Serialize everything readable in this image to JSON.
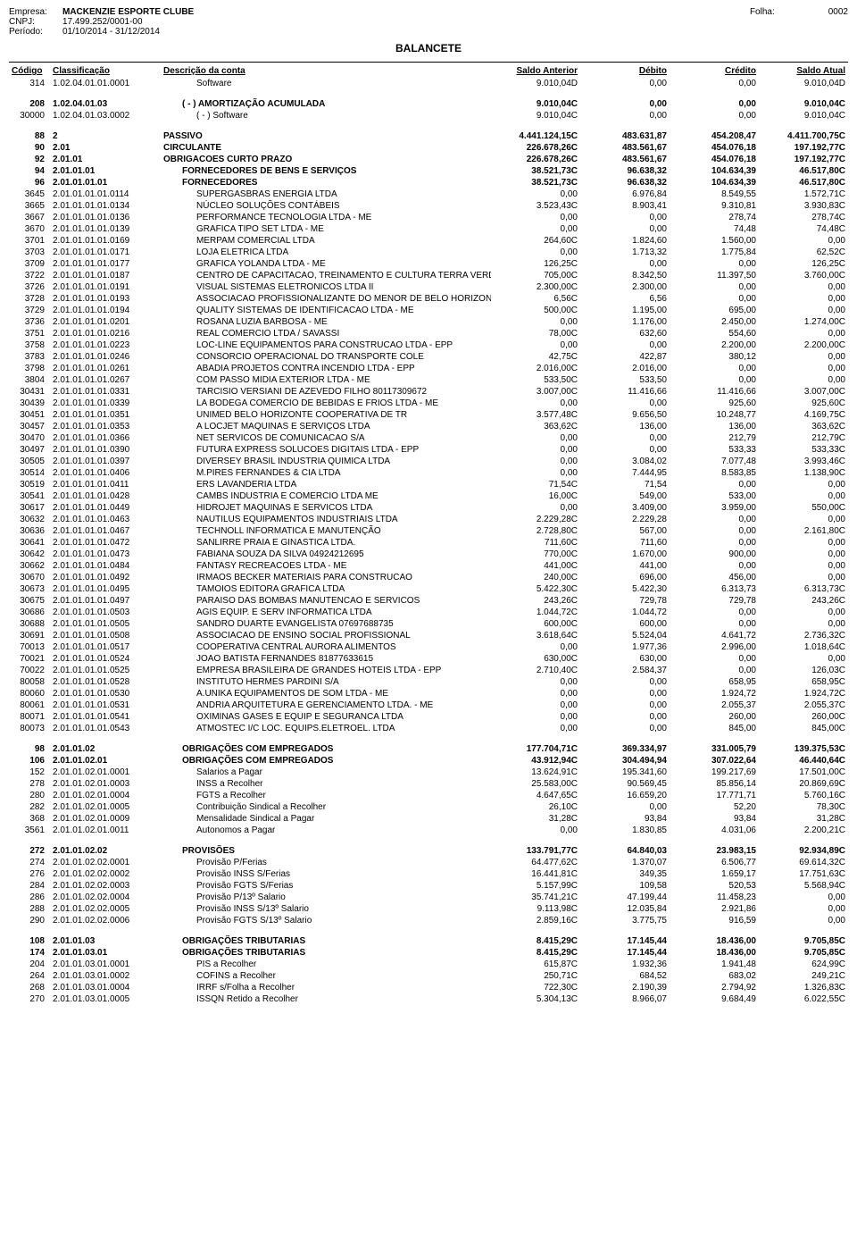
{
  "header": {
    "empresa_label": "Empresa:",
    "empresa": "MACKENZIE ESPORTE CLUBE",
    "cnpj_label": "CNPJ:",
    "cnpj": "17.499.252/0001-00",
    "periodo_label": "Período:",
    "periodo": "01/10/2014 - 31/12/2014",
    "folha_label": "Folha:",
    "folha": "0002",
    "title": "BALANCETE"
  },
  "columns": {
    "codigo": "Código",
    "classificacao": "Classificação",
    "descricao": "Descrição da conta",
    "saldo_anterior": "Saldo Anterior",
    "debito": "Débito",
    "credito": "Crédito",
    "saldo_atual": "Saldo Atual"
  },
  "rows": [
    {
      "codigo": "314",
      "class": "1.02.04.01.01.0001",
      "desc": "Software",
      "sa": "9.010,04D",
      "deb": "0,00",
      "cred": "0,00",
      "satual": "9.010,04D",
      "indent": 2
    },
    {
      "spacer": true
    },
    {
      "codigo": "208",
      "class": "1.02.04.01.03",
      "desc": "( - ) AMORTIZAÇÃO ACUMULADA",
      "sa": "9.010,04C",
      "deb": "0,00",
      "cred": "0,00",
      "satual": "9.010,04C",
      "bold": true,
      "indent": 1
    },
    {
      "codigo": "30000",
      "class": "1.02.04.01.03.0002",
      "desc": "( - ) Software",
      "sa": "9.010,04C",
      "deb": "0,00",
      "cred": "0,00",
      "satual": "9.010,04C",
      "indent": 2
    },
    {
      "spacer": true
    },
    {
      "codigo": "88",
      "class": "2",
      "desc": "PASSIVO",
      "sa": "4.441.124,15C",
      "deb": "483.631,87",
      "cred": "454.208,47",
      "satual": "4.411.700,75C",
      "bold": true
    },
    {
      "codigo": "90",
      "class": "2.01",
      "desc": "CIRCULANTE",
      "sa": "226.678,26C",
      "deb": "483.561,67",
      "cred": "454.076,18",
      "satual": "197.192,77C",
      "bold": true
    },
    {
      "codigo": "92",
      "class": "2.01.01",
      "desc": "OBRIGACOES CURTO PRAZO",
      "sa": "226.678,26C",
      "deb": "483.561,67",
      "cred": "454.076,18",
      "satual": "197.192,77C",
      "bold": true
    },
    {
      "codigo": "94",
      "class": "2.01.01.01",
      "desc": "FORNECEDORES DE BENS E SERVIÇOS",
      "sa": "38.521,73C",
      "deb": "96.638,32",
      "cred": "104.634,39",
      "satual": "46.517,80C",
      "bold": true,
      "indent": 1
    },
    {
      "codigo": "96",
      "class": "2.01.01.01.01",
      "desc": "FORNECEDORES",
      "sa": "38.521,73C",
      "deb": "96.638,32",
      "cred": "104.634,39",
      "satual": "46.517,80C",
      "bold": true,
      "indent": 1
    },
    {
      "codigo": "3645",
      "class": "2.01.01.01.01.0114",
      "desc": "SUPERGASBRAS ENERGIA LTDA",
      "sa": "0,00",
      "deb": "6.976,84",
      "cred": "8.549,55",
      "satual": "1.572,71C",
      "indent": 2
    },
    {
      "codigo": "3665",
      "class": "2.01.01.01.01.0134",
      "desc": "NÚCLEO SOLUÇÕES CONTÁBEIS",
      "sa": "3.523,43C",
      "deb": "8.903,41",
      "cred": "9.310,81",
      "satual": "3.930,83C",
      "indent": 2
    },
    {
      "codigo": "3667",
      "class": "2.01.01.01.01.0136",
      "desc": "PERFORMANCE TECNOLOGIA LTDA - ME",
      "sa": "0,00",
      "deb": "0,00",
      "cred": "278,74",
      "satual": "278,74C",
      "indent": 2
    },
    {
      "codigo": "3670",
      "class": "2.01.01.01.01.0139",
      "desc": "GRAFICA TIPO SET LTDA - ME",
      "sa": "0,00",
      "deb": "0,00",
      "cred": "74,48",
      "satual": "74,48C",
      "indent": 2
    },
    {
      "codigo": "3701",
      "class": "2.01.01.01.01.0169",
      "desc": "MERPAM COMERCIAL LTDA",
      "sa": "264,60C",
      "deb": "1.824,60",
      "cred": "1.560,00",
      "satual": "0,00",
      "indent": 2
    },
    {
      "codigo": "3703",
      "class": "2.01.01.01.01.0171",
      "desc": "LOJA ELETRICA LTDA",
      "sa": "0,00",
      "deb": "1.713,32",
      "cred": "1.775,84",
      "satual": "62,52C",
      "indent": 2
    },
    {
      "codigo": "3709",
      "class": "2.01.01.01.01.0177",
      "desc": "GRAFICA YOLANDA LTDA - ME",
      "sa": "126,25C",
      "deb": "0,00",
      "cred": "0,00",
      "satual": "126,25C",
      "indent": 2
    },
    {
      "codigo": "3722",
      "class": "2.01.01.01.01.0187",
      "desc": "CENTRO DE CAPACITACAO, TREINAMENTO E CULTURA TERRA VERDE",
      "sa": "705,00C",
      "deb": "8.342,50",
      "cred": "11.397,50",
      "satual": "3.760,00C",
      "indent": 2
    },
    {
      "codigo": "3726",
      "class": "2.01.01.01.01.0191",
      "desc": "VISUAL SISTEMAS ELETRONICOS LTDA II",
      "sa": "2.300,00C",
      "deb": "2.300,00",
      "cred": "0,00",
      "satual": "0,00",
      "indent": 2
    },
    {
      "codigo": "3728",
      "class": "2.01.01.01.01.0193",
      "desc": "ASSOCIACAO PROFISSIONALIZANTE DO MENOR DE BELO HORIZONTE",
      "sa": "6,56C",
      "deb": "6,56",
      "cred": "0,00",
      "satual": "0,00",
      "indent": 2
    },
    {
      "codigo": "3729",
      "class": "2.01.01.01.01.0194",
      "desc": "QUALITY SISTEMAS DE IDENTIFICACAO LTDA - ME",
      "sa": "500,00C",
      "deb": "1.195,00",
      "cred": "695,00",
      "satual": "0,00",
      "indent": 2
    },
    {
      "codigo": "3736",
      "class": "2.01.01.01.01.0201",
      "desc": "ROSANA LUZIA BARBOSA - ME",
      "sa": "0,00",
      "deb": "1.176,00",
      "cred": "2.450,00",
      "satual": "1.274,00C",
      "indent": 2
    },
    {
      "codigo": "3751",
      "class": "2.01.01.01.01.0216",
      "desc": "REAL COMERCIO LTDA / SAVASSI",
      "sa": "78,00C",
      "deb": "632,60",
      "cred": "554,60",
      "satual": "0,00",
      "indent": 2
    },
    {
      "codigo": "3758",
      "class": "2.01.01.01.01.0223",
      "desc": "LOC-LINE EQUIPAMENTOS PARA CONSTRUCAO LTDA - EPP",
      "sa": "0,00",
      "deb": "0,00",
      "cred": "2.200,00",
      "satual": "2.200,00C",
      "indent": 2
    },
    {
      "codigo": "3783",
      "class": "2.01.01.01.01.0246",
      "desc": "CONSORCIO OPERACIONAL DO TRANSPORTE COLE",
      "sa": "42,75C",
      "deb": "422,87",
      "cred": "380,12",
      "satual": "0,00",
      "indent": 2
    },
    {
      "codigo": "3798",
      "class": "2.01.01.01.01.0261",
      "desc": "ABADIA PROJETOS CONTRA INCENDIO LTDA - EPP",
      "sa": "2.016,00C",
      "deb": "2.016,00",
      "cred": "0,00",
      "satual": "0,00",
      "indent": 2
    },
    {
      "codigo": "3804",
      "class": "2.01.01.01.01.0267",
      "desc": "COM PASSO MIDIA EXTERIOR LTDA - ME",
      "sa": "533,50C",
      "deb": "533,50",
      "cred": "0,00",
      "satual": "0,00",
      "indent": 2
    },
    {
      "codigo": "30431",
      "class": "2.01.01.01.01.0331",
      "desc": "TARCISIO VERSIANI DE AZEVEDO FILHO 80117309672",
      "sa": "3.007,00C",
      "deb": "11.416,66",
      "cred": "11.416,66",
      "satual": "3.007,00C",
      "indent": 2
    },
    {
      "codigo": "30439",
      "class": "2.01.01.01.01.0339",
      "desc": "LA BODEGA COMERCIO DE BEBIDAS E FRIOS LTDA - ME",
      "sa": "0,00",
      "deb": "0,00",
      "cred": "925,60",
      "satual": "925,60C",
      "indent": 2
    },
    {
      "codigo": "30451",
      "class": "2.01.01.01.01.0351",
      "desc": "UNIMED BELO HORIZONTE  COOPERATIVA DE TR",
      "sa": "3.577,48C",
      "deb": "9.656,50",
      "cred": "10.248,77",
      "satual": "4.169,75C",
      "indent": 2
    },
    {
      "codigo": "30457",
      "class": "2.01.01.01.01.0353",
      "desc": "A LOCJET MAQUINAS E SERVIÇOS LTDA",
      "sa": "363,62C",
      "deb": "136,00",
      "cred": "136,00",
      "satual": "363,62C",
      "indent": 2
    },
    {
      "codigo": "30470",
      "class": "2.01.01.01.01.0366",
      "desc": "NET SERVICOS DE COMUNICACAO S/A",
      "sa": "0,00",
      "deb": "0,00",
      "cred": "212,79",
      "satual": "212,79C",
      "indent": 2
    },
    {
      "codigo": "30497",
      "class": "2.01.01.01.01.0390",
      "desc": "FUTURA EXPRESS SOLUCOES DIGITAIS LTDA - EPP",
      "sa": "0,00",
      "deb": "0,00",
      "cred": "533,33",
      "satual": "533,33C",
      "indent": 2
    },
    {
      "codigo": "30505",
      "class": "2.01.01.01.01.0397",
      "desc": "DIVERSEY BRASIL INDUSTRIA QUIMICA LTDA",
      "sa": "0,00",
      "deb": "3.084,02",
      "cred": "7.077,48",
      "satual": "3.993,46C",
      "indent": 2
    },
    {
      "codigo": "30514",
      "class": "2.01.01.01.01.0406",
      "desc": "M.PIRES FERNANDES & CIA LTDA",
      "sa": "0,00",
      "deb": "7.444,95",
      "cred": "8.583,85",
      "satual": "1.138,90C",
      "indent": 2
    },
    {
      "codigo": "30519",
      "class": "2.01.01.01.01.0411",
      "desc": "ERS LAVANDERIA LTDA",
      "sa": "71,54C",
      "deb": "71,54",
      "cred": "0,00",
      "satual": "0,00",
      "indent": 2
    },
    {
      "codigo": "30541",
      "class": "2.01.01.01.01.0428",
      "desc": "CAMBS INDUSTRIA E COMERCIO LTDA ME",
      "sa": "16,00C",
      "deb": "549,00",
      "cred": "533,00",
      "satual": "0,00",
      "indent": 2
    },
    {
      "codigo": "30617",
      "class": "2.01.01.01.01.0449",
      "desc": "HIDROJET MAQUINAS E SERVICOS LTDA",
      "sa": "0,00",
      "deb": "3.409,00",
      "cred": "3.959,00",
      "satual": "550,00C",
      "indent": 2
    },
    {
      "codigo": "30632",
      "class": "2.01.01.01.01.0463",
      "desc": "NAUTILUS EQUIPAMENTOS INDUSTRIAIS LTDA",
      "sa": "2.229,28C",
      "deb": "2.229,28",
      "cred": "0,00",
      "satual": "0,00",
      "indent": 2
    },
    {
      "codigo": "30636",
      "class": "2.01.01.01.01.0467",
      "desc": "TECHNOLL INFORMATICA E MANUTENÇÃO",
      "sa": "2.728,80C",
      "deb": "567,00",
      "cred": "0,00",
      "satual": "2.161,80C",
      "indent": 2
    },
    {
      "codigo": "30641",
      "class": "2.01.01.01.01.0472",
      "desc": "SANLIRRE PRAIA E GINASTICA LTDA.",
      "sa": "711,60C",
      "deb": "711,60",
      "cred": "0,00",
      "satual": "0,00",
      "indent": 2
    },
    {
      "codigo": "30642",
      "class": "2.01.01.01.01.0473",
      "desc": "FABIANA SOUZA DA SILVA 04924212695",
      "sa": "770,00C",
      "deb": "1.670,00",
      "cred": "900,00",
      "satual": "0,00",
      "indent": 2
    },
    {
      "codigo": "30662",
      "class": "2.01.01.01.01.0484",
      "desc": "FANTASY RECREACOES LTDA - ME",
      "sa": "441,00C",
      "deb": "441,00",
      "cred": "0,00",
      "satual": "0,00",
      "indent": 2
    },
    {
      "codigo": "30670",
      "class": "2.01.01.01.01.0492",
      "desc": "IRMAOS BECKER MATERIAIS PARA CONSTRUCAO",
      "sa": "240,00C",
      "deb": "696,00",
      "cred": "456,00",
      "satual": "0,00",
      "indent": 2
    },
    {
      "codigo": "30673",
      "class": "2.01.01.01.01.0495",
      "desc": "TAMOIOS EDITORA GRAFICA LTDA",
      "sa": "5.422,30C",
      "deb": "5.422,30",
      "cred": "6.313,73",
      "satual": "6.313,73C",
      "indent": 2
    },
    {
      "codigo": "30675",
      "class": "2.01.01.01.01.0497",
      "desc": "PARAISO DAS BOMBAS MANUTENCAO E SERVICOS",
      "sa": "243,26C",
      "deb": "729,78",
      "cred": "729,78",
      "satual": "243,26C",
      "indent": 2
    },
    {
      "codigo": "30686",
      "class": "2.01.01.01.01.0503",
      "desc": "AGIS EQUIP. E SERV INFORMATICA LTDA",
      "sa": "1.044,72C",
      "deb": "1.044,72",
      "cred": "0,00",
      "satual": "0,00",
      "indent": 2
    },
    {
      "codigo": "30688",
      "class": "2.01.01.01.01.0505",
      "desc": "SANDRO DUARTE EVANGELISTA 07697688735",
      "sa": "600,00C",
      "deb": "600,00",
      "cred": "0,00",
      "satual": "0,00",
      "indent": 2
    },
    {
      "codigo": "30691",
      "class": "2.01.01.01.01.0508",
      "desc": "ASSOCIACAO DE ENSINO SOCIAL PROFISSIONAL",
      "sa": "3.618,64C",
      "deb": "5.524,04",
      "cred": "4.641,72",
      "satual": "2.736,32C",
      "indent": 2
    },
    {
      "codigo": "70013",
      "class": "2.01.01.01.01.0517",
      "desc": "COOPERATIVA CENTRAL AURORA ALIMENTOS",
      "sa": "0,00",
      "deb": "1.977,36",
      "cred": "2.996,00",
      "satual": "1.018,64C",
      "indent": 2
    },
    {
      "codigo": "70021",
      "class": "2.01.01.01.01.0524",
      "desc": "JOAO BATISTA FERNANDES 81877633615",
      "sa": "630,00C",
      "deb": "630,00",
      "cred": "0,00",
      "satual": "0,00",
      "indent": 2
    },
    {
      "codigo": "70022",
      "class": "2.01.01.01.01.0525",
      "desc": "EMPRESA BRASILEIRA DE GRANDES HOTEIS LTDA - EPP",
      "sa": "2.710,40C",
      "deb": "2.584,37",
      "cred": "0,00",
      "satual": "126,03C",
      "indent": 2
    },
    {
      "codigo": "80058",
      "class": "2.01.01.01.01.0528",
      "desc": "INSTITUTO HERMES PARDINI S/A",
      "sa": "0,00",
      "deb": "0,00",
      "cred": "658,95",
      "satual": "658,95C",
      "indent": 2
    },
    {
      "codigo": "80060",
      "class": "2.01.01.01.01.0530",
      "desc": "A.UNIKA EQUIPAMENTOS DE SOM LTDA - ME",
      "sa": "0,00",
      "deb": "0,00",
      "cred": "1.924,72",
      "satual": "1.924,72C",
      "indent": 2
    },
    {
      "codigo": "80061",
      "class": "2.01.01.01.01.0531",
      "desc": "ANDRIA ARQUITETURA E GERENCIAMENTO LTDA. - ME",
      "sa": "0,00",
      "deb": "0,00",
      "cred": "2.055,37",
      "satual": "2.055,37C",
      "indent": 2
    },
    {
      "codigo": "80071",
      "class": "2.01.01.01.01.0541",
      "desc": "OXIMINAS GASES E EQUIP E SEGURANCA LTDA",
      "sa": "0,00",
      "deb": "0,00",
      "cred": "260,00",
      "satual": "260,00C",
      "indent": 2
    },
    {
      "codigo": "80073",
      "class": "2.01.01.01.01.0543",
      "desc": "ATMOSTEC I/C LOC. EQUIPS.ELETROEL. LTDA",
      "sa": "0,00",
      "deb": "0,00",
      "cred": "845,00",
      "satual": "845,00C",
      "indent": 2
    },
    {
      "spacer": true
    },
    {
      "codigo": "98",
      "class": "2.01.01.02",
      "desc": "OBRIGAÇÕES COM EMPREGADOS",
      "sa": "177.704,71C",
      "deb": "369.334,97",
      "cred": "331.005,79",
      "satual": "139.375,53C",
      "bold": true,
      "indent": 1
    },
    {
      "codigo": "106",
      "class": "2.01.01.02.01",
      "desc": "OBRIGAÇÕES COM EMPREGADOS",
      "sa": "43.912,94C",
      "deb": "304.494,94",
      "cred": "307.022,64",
      "satual": "46.440,64C",
      "bold": true,
      "indent": 1
    },
    {
      "codigo": "152",
      "class": "2.01.01.02.01.0001",
      "desc": "Salarios a Pagar",
      "sa": "13.624,91C",
      "deb": "195.341,60",
      "cred": "199.217,69",
      "satual": "17.501,00C",
      "indent": 2
    },
    {
      "codigo": "278",
      "class": "2.01.01.02.01.0003",
      "desc": "INSS a Recolher",
      "sa": "25.583,00C",
      "deb": "90.569,45",
      "cred": "85.856,14",
      "satual": "20.869,69C",
      "indent": 2
    },
    {
      "codigo": "280",
      "class": "2.01.01.02.01.0004",
      "desc": "FGTS a Recolher",
      "sa": "4.647,65C",
      "deb": "16.659,20",
      "cred": "17.771,71",
      "satual": "5.760,16C",
      "indent": 2
    },
    {
      "codigo": "282",
      "class": "2.01.01.02.01.0005",
      "desc": "Contribuição Sindical a Recolher",
      "sa": "26,10C",
      "deb": "0,00",
      "cred": "52,20",
      "satual": "78,30C",
      "indent": 2
    },
    {
      "codigo": "368",
      "class": "2.01.01.02.01.0009",
      "desc": "Mensalidade Sindical a Pagar",
      "sa": "31,28C",
      "deb": "93,84",
      "cred": "93,84",
      "satual": "31,28C",
      "indent": 2
    },
    {
      "codigo": "3561",
      "class": "2.01.01.02.01.0011",
      "desc": "Autonomos a Pagar",
      "sa": "0,00",
      "deb": "1.830,85",
      "cred": "4.031,06",
      "satual": "2.200,21C",
      "indent": 2
    },
    {
      "spacer": true
    },
    {
      "codigo": "272",
      "class": "2.01.01.02.02",
      "desc": "PROVISÕES",
      "sa": "133.791,77C",
      "deb": "64.840,03",
      "cred": "23.983,15",
      "satual": "92.934,89C",
      "bold": true,
      "indent": 1
    },
    {
      "codigo": "274",
      "class": "2.01.01.02.02.0001",
      "desc": "Provisão P/Ferias",
      "sa": "64.477,62C",
      "deb": "1.370,07",
      "cred": "6.506,77",
      "satual": "69.614,32C",
      "indent": 2
    },
    {
      "codigo": "276",
      "class": "2.01.01.02.02.0002",
      "desc": "Provisão INSS S/Ferias",
      "sa": "16.441,81C",
      "deb": "349,35",
      "cred": "1.659,17",
      "satual": "17.751,63C",
      "indent": 2
    },
    {
      "codigo": "284",
      "class": "2.01.01.02.02.0003",
      "desc": "Provisão FGTS S/Ferias",
      "sa": "5.157,99C",
      "deb": "109,58",
      "cred": "520,53",
      "satual": "5.568,94C",
      "indent": 2
    },
    {
      "codigo": "286",
      "class": "2.01.01.02.02.0004",
      "desc": "Provisão P/13º Salario",
      "sa": "35.741,21C",
      "deb": "47.199,44",
      "cred": "11.458,23",
      "satual": "0,00",
      "indent": 2
    },
    {
      "codigo": "288",
      "class": "2.01.01.02.02.0005",
      "desc": "Provisão INSS S/13º Salario",
      "sa": "9.113,98C",
      "deb": "12.035,84",
      "cred": "2.921,86",
      "satual": "0,00",
      "indent": 2
    },
    {
      "codigo": "290",
      "class": "2.01.01.02.02.0006",
      "desc": "Provisão FGTS S/13º Salario",
      "sa": "2.859,16C",
      "deb": "3.775,75",
      "cred": "916,59",
      "satual": "0,00",
      "indent": 2
    },
    {
      "spacer": true
    },
    {
      "codigo": "108",
      "class": "2.01.01.03",
      "desc": "OBRIGAÇÕES TRIBUTARIAS",
      "sa": "8.415,29C",
      "deb": "17.145,44",
      "cred": "18.436,00",
      "satual": "9.705,85C",
      "bold": true,
      "indent": 1
    },
    {
      "codigo": "174",
      "class": "2.01.01.03.01",
      "desc": "OBRIGAÇÕES TRIBUTARIAS",
      "sa": "8.415,29C",
      "deb": "17.145,44",
      "cred": "18.436,00",
      "satual": "9.705,85C",
      "bold": true,
      "indent": 1
    },
    {
      "codigo": "204",
      "class": "2.01.01.03.01.0001",
      "desc": "PIS a Recolher",
      "sa": "615,87C",
      "deb": "1.932,36",
      "cred": "1.941,48",
      "satual": "624,99C",
      "indent": 2
    },
    {
      "codigo": "264",
      "class": "2.01.01.03.01.0002",
      "desc": "COFINS a Recolher",
      "sa": "250,71C",
      "deb": "684,52",
      "cred": "683,02",
      "satual": "249,21C",
      "indent": 2
    },
    {
      "codigo": "268",
      "class": "2.01.01.03.01.0004",
      "desc": "IRRF s/Folha a Recolher",
      "sa": "722,30C",
      "deb": "2.190,39",
      "cred": "2.794,92",
      "satual": "1.326,83C",
      "indent": 2
    },
    {
      "codigo": "270",
      "class": "2.01.01.03.01.0005",
      "desc": "ISSQN Retido a Recolher",
      "sa": "5.304,13C",
      "deb": "8.966,07",
      "cred": "9.684,49",
      "satual": "6.022,55C",
      "indent": 2
    }
  ]
}
